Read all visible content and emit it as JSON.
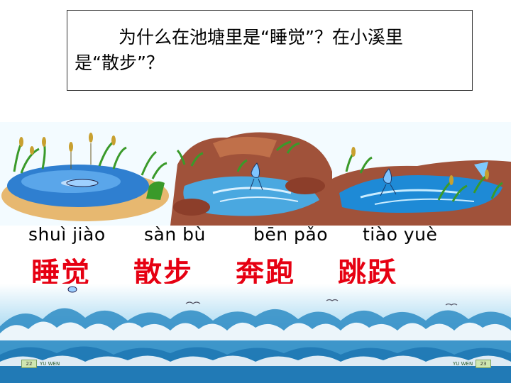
{
  "question": {
    "line1": "为什么在池塘里是“睡觉”？在小溪里",
    "line2": "是“散步”？"
  },
  "words": [
    {
      "pinyin": "shuì jiào",
      "hanzi": "睡觉"
    },
    {
      "pinyin": "sàn bù",
      "hanzi": "散步"
    },
    {
      "pinyin": "bēn pǎo",
      "hanzi": "奔跑"
    },
    {
      "pinyin": "tiào yuè",
      "hanzi": "跳跃"
    }
  ],
  "footer": {
    "left_page": "22",
    "left_brand": "YU WEN",
    "right_brand": "YU WEN",
    "right_page": "23"
  },
  "colors": {
    "hanzi": "#e60012",
    "water": "#2f7fd0",
    "grass": "#3a9a2a",
    "rock": "#a0523a"
  }
}
